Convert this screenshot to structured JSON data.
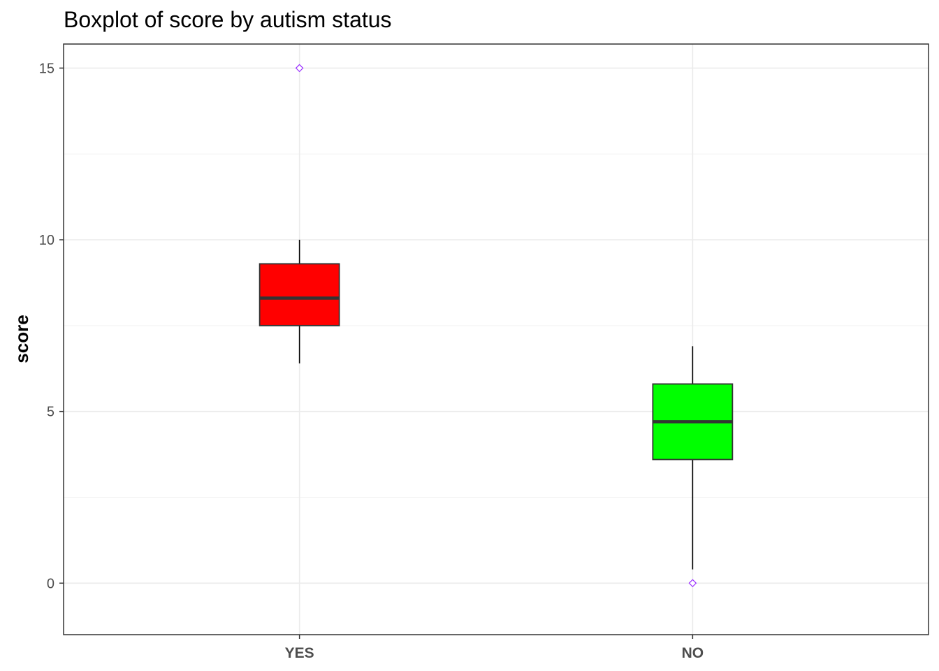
{
  "chart_data": {
    "type": "boxplot",
    "title": "Boxplot of score by autism status",
    "xlabel": "",
    "ylabel": "score",
    "ylim": [
      -1.5,
      15.7
    ],
    "y_ticks": [
      0,
      5,
      10,
      15
    ],
    "grid": true,
    "categories": [
      "YES",
      "NO"
    ],
    "boxes": [
      {
        "category": "YES",
        "color": "#ff0000",
        "whisker_low": 6.4,
        "q1": 7.5,
        "median": 8.3,
        "q3": 9.3,
        "whisker_high": 10.0,
        "outliers": [
          15
        ]
      },
      {
        "category": "NO",
        "color": "#00ff00",
        "whisker_low": 0.4,
        "q1": 3.6,
        "median": 4.7,
        "q3": 5.8,
        "whisker_high": 6.9,
        "outliers": [
          0
        ]
      }
    ],
    "outlier_color": "#9b30ff"
  }
}
